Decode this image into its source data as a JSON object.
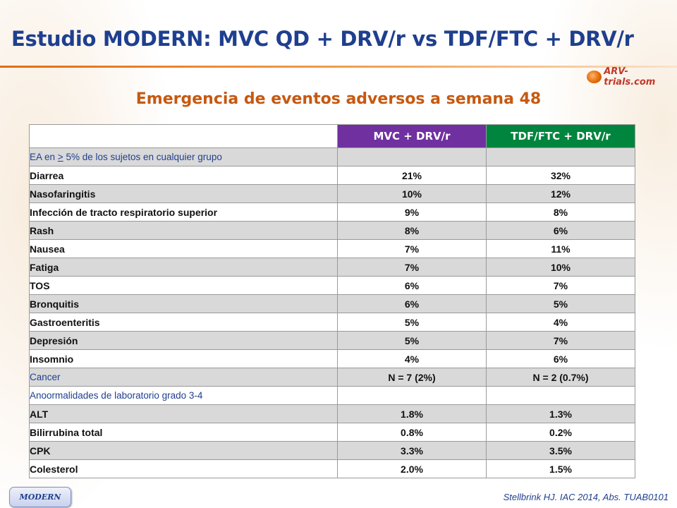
{
  "slide": {
    "title": "Estudio MODERN: MVC QD + DRV/r vs TDF/FTC + DRV/r",
    "subtitle": "Emergencia de eventos adversos a semana 48",
    "logo_text": "ARV-trials.com",
    "badge": "MODERN",
    "citation": "Stellbrink HJ. IAC 2014, Abs. TUAB0101"
  },
  "colors": {
    "title": "#1f3f8f",
    "subtitle": "#c65911",
    "mvc_header": "#7030a0",
    "tdf_header": "#00853e",
    "row_shade": "#d9d9d9"
  },
  "table": {
    "headers": [
      "",
      "MVC + DRV/r",
      "TDF/FTC + DRV/r"
    ],
    "section_ea": {
      "prefix": "EA en ",
      "symbol": ">",
      "suffix": " 5% de los sujetos en cualquier grupo"
    },
    "ea_rows": [
      {
        "label": "Diarrea",
        "mvc": "21%",
        "tdf": "32%"
      },
      {
        "label": "Nasofaringitis",
        "mvc": "10%",
        "tdf": "12%"
      },
      {
        "label": "Infección de tracto respiratorio superior",
        "mvc": "9%",
        "tdf": "8%"
      },
      {
        "label": "Rash",
        "mvc": "8%",
        "tdf": "6%"
      },
      {
        "label": "Nausea",
        "mvc": "7%",
        "tdf": "11%"
      },
      {
        "label": "Fatiga",
        "mvc": "7%",
        "tdf": "10%"
      },
      {
        "label": "TOS",
        "mvc": "6%",
        "tdf": "7%"
      },
      {
        "label": "Bronquitis",
        "mvc": "6%",
        "tdf": "5%"
      },
      {
        "label": "Gastroenteritis",
        "mvc": "5%",
        "tdf": "4%"
      },
      {
        "label": "Depresión",
        "mvc": "5%",
        "tdf": "7%"
      },
      {
        "label": "Insomnio",
        "mvc": "4%",
        "tdf": "6%"
      }
    ],
    "cancer": {
      "label": "Cancer",
      "mvc": "N = 7 (2%)",
      "tdf": "N = 2 (0.7%)"
    },
    "section_lab": "Anoormalidades de laboratorio grado 3-4",
    "lab_rows": [
      {
        "label": "ALT",
        "mvc": "1.8%",
        "tdf": "1.3%"
      },
      {
        "label": "Bilirrubina total",
        "mvc": "0.8%",
        "tdf": "0.2%"
      },
      {
        "label": "CPK",
        "mvc": "3.3%",
        "tdf": "3.5%"
      },
      {
        "label": "Colesterol",
        "mvc": "2.0%",
        "tdf": "1.5%"
      }
    ]
  }
}
